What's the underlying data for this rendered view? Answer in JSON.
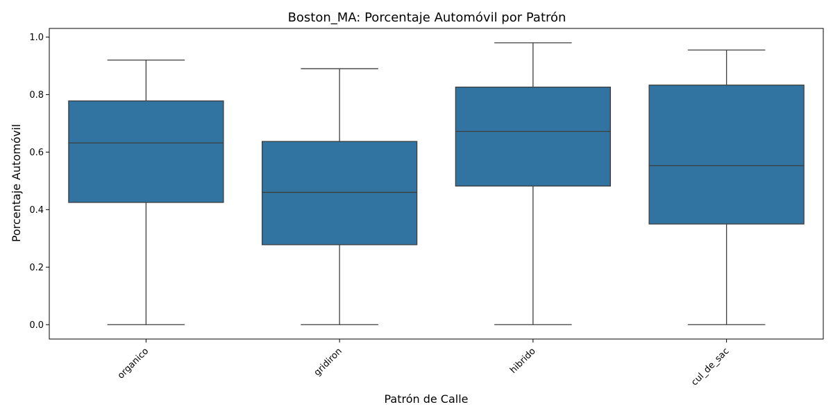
{
  "chart_data": {
    "type": "box",
    "title": "Boston_MA: Porcentaje Automóvil por Patrón",
    "xlabel": "Patrón de Calle",
    "ylabel": "Porcentaje Automóvil",
    "categories": [
      "organico",
      "gridiron",
      "hibrido",
      "cul_de_sac"
    ],
    "boxes": [
      {
        "category": "organico",
        "whisker_low": 0.0,
        "q1": 0.425,
        "median": 0.632,
        "q3": 0.778,
        "whisker_high": 0.92
      },
      {
        "category": "gridiron",
        "whisker_low": 0.0,
        "q1": 0.278,
        "median": 0.46,
        "q3": 0.637,
        "whisker_high": 0.89
      },
      {
        "category": "hibrido",
        "whisker_low": 0.0,
        "q1": 0.482,
        "median": 0.672,
        "q3": 0.826,
        "whisker_high": 0.98
      },
      {
        "category": "cul_de_sac",
        "whisker_low": 0.0,
        "q1": 0.35,
        "median": 0.553,
        "q3": 0.833,
        "whisker_high": 0.955
      }
    ],
    "yticks": [
      "0.0",
      "0.2",
      "0.4",
      "0.6",
      "0.8",
      "1.0"
    ],
    "ylim": [
      -0.05,
      1.03
    ],
    "box_color": "#3274a1",
    "line_color": "#3d3d3d",
    "grid": false,
    "legend": "none",
    "xtick_rotation": "45deg"
  }
}
